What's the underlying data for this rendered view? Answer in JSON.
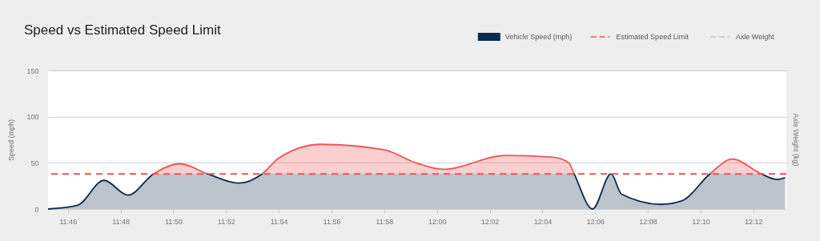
{
  "chart_data": {
    "type": "area",
    "title": "Speed vs Estimated Speed Limit",
    "ylabel": "Speed (mph)",
    "y2label": "Axle Weight (kg)",
    "x": [
      11.7542,
      11.7728,
      11.7895,
      11.8047,
      11.8208,
      11.8375,
      11.855,
      11.875,
      11.8895,
      11.9,
      11.9267,
      11.9667,
      11.9867,
      12.0042,
      12.0433,
      12.0733,
      12.0833,
      12.0867,
      12.0983,
      12.11,
      12.1167,
      12.1417,
      12.155,
      12.1725,
      12.1867,
      12.205,
      12.215,
      12.22
    ],
    "series": [
      {
        "name": "Vehicle Speed (mph)",
        "color": "#0d2b4e",
        "values": [
          0,
          4,
          31,
          15,
          38,
          49,
          38,
          28,
          38,
          55,
          70,
          64,
          50,
          43,
          58,
          56,
          50,
          38,
          0,
          38,
          16,
          5,
          9,
          38,
          54,
          38,
          32,
          34
        ]
      },
      {
        "name": "Axle Weight",
        "color": "#c8c8c8",
        "type": "line",
        "line_style": "dashed",
        "values": [
          null,
          null,
          null,
          null,
          null,
          null,
          null,
          null,
          null,
          null,
          null,
          null,
          null,
          null,
          null,
          null,
          null,
          null,
          null,
          null,
          null,
          null,
          null,
          null,
          null,
          null,
          null,
          null
        ]
      }
    ],
    "ref_lines": [
      {
        "axis": "y",
        "value": 38,
        "label": "Estimated Speed Limit",
        "color": "#ef5357",
        "line_style": "dashed"
      }
    ],
    "xlim": [
      11.754167,
      12.220833
    ],
    "xticks": [
      {
        "value": 11.76667,
        "label": "11:46"
      },
      {
        "value": 11.8,
        "label": "11:48"
      },
      {
        "value": 11.83333,
        "label": "11:50"
      },
      {
        "value": 11.86667,
        "label": "11:52"
      },
      {
        "value": 11.9,
        "label": "11:54"
      },
      {
        "value": 11.93333,
        "label": "11:56"
      },
      {
        "value": 11.96667,
        "label": "11:58"
      },
      {
        "value": 12.0,
        "label": "12:00"
      },
      {
        "value": 12.03333,
        "label": "12:02"
      },
      {
        "value": 12.06667,
        "label": "12:04"
      },
      {
        "value": 12.1,
        "label": "12:06"
      },
      {
        "value": 12.13333,
        "label": "12:08"
      },
      {
        "value": 12.16667,
        "label": "12:10"
      },
      {
        "value": 12.2,
        "label": "12:12"
      }
    ],
    "ylim": [
      0,
      150
    ],
    "yticks": [
      0,
      50,
      100,
      150
    ],
    "grid": "y",
    "legend": "top right"
  }
}
